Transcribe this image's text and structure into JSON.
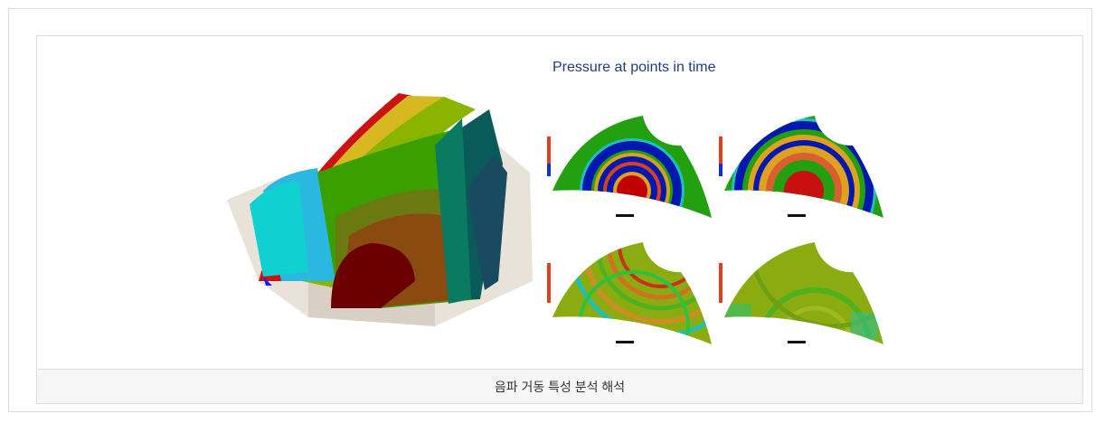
{
  "figure": {
    "image_heading": "Pressure at points in time",
    "caption": "음파 거동 특성 분석 해석"
  },
  "colors": {
    "border": "#dcdcdc",
    "caption_bg": "#f6f6f6",
    "heading": "#1f3d7a"
  }
}
